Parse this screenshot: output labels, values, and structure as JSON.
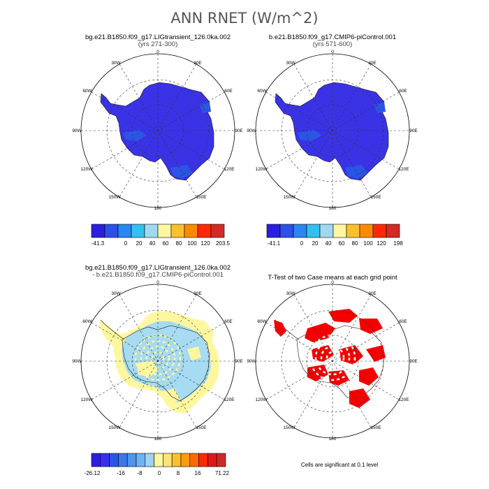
{
  "main_title": "ANN RNET (W/m^2)",
  "panels": {
    "p1": {
      "title": "bg.e21.B1850.f09_g17.LIGtransient_126.0ka.002",
      "subtitle": "(yrs 271-300)"
    },
    "p2": {
      "title": "b.e21.B1850.f09_g17.CMIP6-piControl.001",
      "subtitle": "(yrs 571-600)"
    },
    "p3": {
      "title": "bg.e21.B1850.f09_g17.LIGtransient_126.0ka.002",
      "subtitle": "- b.e21.B1850.f09_g17.CMIP6-piControl.001"
    },
    "p4": {
      "title": "T-Test of two Case means at each grid point",
      "subtitle": ""
    }
  },
  "longitude_labels": [
    "0",
    "30E",
    "60E",
    "90E",
    "120E",
    "150E",
    "180",
    "150W",
    "120W",
    "90W",
    "60W",
    "30W"
  ],
  "colorbars": {
    "cb1": {
      "labels": [
        "-41.3",
        "0",
        "20",
        "40",
        "60",
        "80",
        "100",
        "120",
        "203.5"
      ],
      "colors": [
        "#2a1fe0",
        "#2e50e6",
        "#2a86f0",
        "#33bff2",
        "#9fd9ef",
        "#fff7a0",
        "#fcc02d",
        "#ff8a00",
        "#ff2a00",
        "#d42a26"
      ]
    },
    "cb2": {
      "labels": [
        "-41.1",
        "0",
        "20",
        "40",
        "60",
        "80",
        "100",
        "120",
        "198"
      ],
      "colors": [
        "#2a1fe0",
        "#2e50e6",
        "#2a86f0",
        "#33bff2",
        "#9fd9ef",
        "#fff7a0",
        "#fcc02d",
        "#ff8a00",
        "#ff2a00",
        "#d42a26"
      ]
    },
    "cb3": {
      "labels": [
        "-26.12",
        "-16",
        "-8",
        "0",
        "8",
        "16",
        "71.22"
      ],
      "colors": [
        "#2a1fe0",
        "#3a2ff0",
        "#2a55e6",
        "#3b78ea",
        "#4f95ee",
        "#6fb2f2",
        "#9fd3f0",
        "#fff7a0",
        "#fde27a",
        "#fcc02d",
        "#ff9a10",
        "#ff6a00",
        "#ff2a00",
        "#e01818",
        "#cc2a2a"
      ]
    }
  },
  "footnote": "Cells are significant at 0.1 level",
  "chart_data": [
    {
      "type": "heatmap",
      "title": "bg.e21.B1850.f09_g17.LIGtransient_126.0ka.002",
      "subtitle": "(yrs 271-300)",
      "projection": "south polar stereographic",
      "colorbar_labels": [
        "-41.3",
        "0",
        "20",
        "40",
        "60",
        "80",
        "100",
        "120",
        "203.5"
      ],
      "range": [
        -41.3,
        203.5
      ]
    },
    {
      "type": "heatmap",
      "title": "b.e21.B1850.f09_g17.CMIP6-piControl.001",
      "subtitle": "(yrs 571-600)",
      "projection": "south polar stereographic",
      "colorbar_labels": [
        "-41.1",
        "0",
        "20",
        "40",
        "60",
        "80",
        "100",
        "120",
        "198"
      ],
      "range": [
        -41.1,
        198
      ]
    },
    {
      "type": "heatmap",
      "title": "bg.e21.B1850.f09_g17.LIGtransient_126.0ka.002 - b.e21.B1850.f09_g17.CMIP6-piControl.001",
      "projection": "south polar stereographic",
      "colorbar_labels": [
        "-26.12",
        "-16",
        "-8",
        "0",
        "8",
        "16",
        "71.22"
      ],
      "range": [
        -26.12,
        71.22
      ]
    },
    {
      "type": "heatmap",
      "title": "T-Test of two Case means at each grid point",
      "projection": "south polar stereographic",
      "significance_level": 0.1,
      "note": "Cells are significant at 0.1 level"
    }
  ]
}
